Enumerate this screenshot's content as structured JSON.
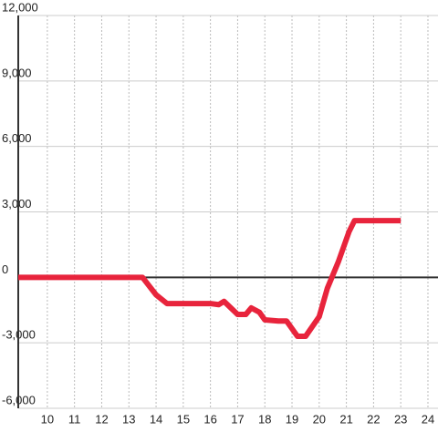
{
  "chart_data": {
    "type": "line",
    "x": [
      8.93,
      13.5,
      14,
      14.4,
      15,
      15.5,
      16,
      16.3,
      16.5,
      17,
      17.3,
      17.5,
      17.8,
      18,
      18.5,
      18.8,
      19.2,
      19.5,
      20,
      20.3,
      20.7,
      21.1,
      21.3,
      22,
      23
    ],
    "series": [
      {
        "color": "#e8243c",
        "values": [
          0,
          0,
          -800,
          -1200,
          -1200,
          -1200,
          -1200,
          -1250,
          -1100,
          -1700,
          -1700,
          -1400,
          -1600,
          -1950,
          -2000,
          -2000,
          -2700,
          -2700,
          -1800,
          -500,
          700,
          2100,
          2600,
          2600,
          2600
        ]
      }
    ],
    "xlim": [
      8.93,
      24.37
    ],
    "xticks": [
      10,
      11,
      12,
      13,
      14,
      15,
      16,
      17,
      18,
      19,
      20,
      21,
      22,
      23,
      24
    ],
    "ylim": [
      -6000,
      12000
    ],
    "yticks": [
      {
        "value": -6000,
        "label": "-6,000"
      },
      {
        "value": -3000,
        "label": "-3,000"
      },
      0,
      {
        "value": 3000,
        "label": "3,000"
      },
      {
        "value": 6000,
        "label": "6,000"
      },
      {
        "value": 9000,
        "label": "9,000"
      },
      {
        "value": 12000,
        "label": "12,000"
      }
    ],
    "grid": true
  }
}
